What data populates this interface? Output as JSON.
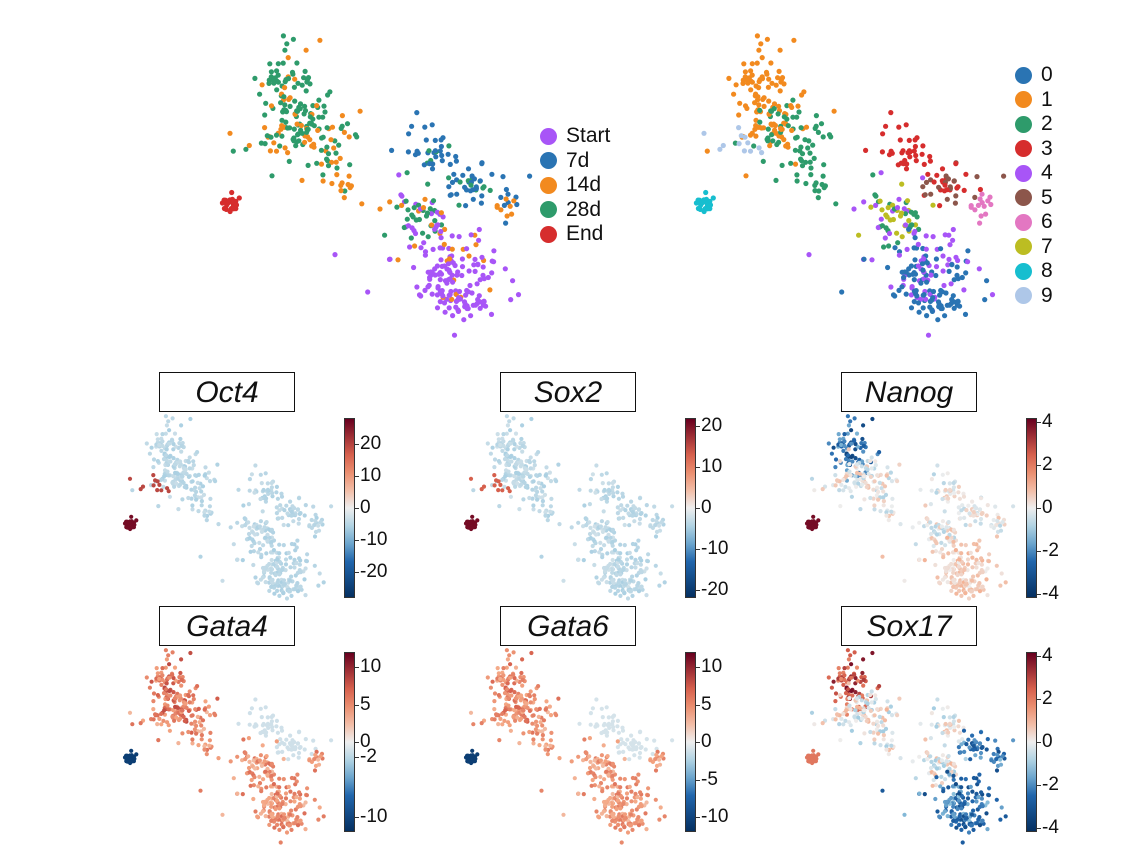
{
  "chart_data": [
    {
      "type": "scatter",
      "title": "",
      "xlabel": "",
      "ylabel": "",
      "legend_position": "right",
      "legend": [
        {
          "label": "Start",
          "color": "#a855f7"
        },
        {
          "label": "7d",
          "color": "#2a74b3"
        },
        {
          "label": "14d",
          "color": "#f28a1f"
        },
        {
          "label": "28d",
          "color": "#2e9b6b"
        },
        {
          "label": "End",
          "color": "#d62d2d"
        }
      ]
    },
    {
      "type": "scatter",
      "title": "",
      "xlabel": "",
      "ylabel": "",
      "legend_position": "right",
      "legend": [
        {
          "label": "0",
          "color": "#2a74b3"
        },
        {
          "label": "1",
          "color": "#f28a1f"
        },
        {
          "label": "2",
          "color": "#2e9b6b"
        },
        {
          "label": "3",
          "color": "#d62d2d"
        },
        {
          "label": "4",
          "color": "#a855f7"
        },
        {
          "label": "5",
          "color": "#8c564b"
        },
        {
          "label": "6",
          "color": "#e377c2"
        },
        {
          "label": "7",
          "color": "#bcbd22"
        },
        {
          "label": "8",
          "color": "#17becf"
        },
        {
          "label": "9",
          "color": "#aec7e8"
        }
      ]
    },
    {
      "type": "scatter",
      "title": "Oct4",
      "colorscale": "RdBu_r",
      "range": [
        -28,
        28
      ],
      "ticks": [
        "20",
        "10",
        "0",
        "-10",
        "-20"
      ],
      "tick_values": [
        20,
        10,
        0,
        -10,
        -20
      ]
    },
    {
      "type": "scatter",
      "title": "Sox2",
      "colorscale": "RdBu_r",
      "range": [
        -22,
        22
      ],
      "ticks": [
        "20",
        "10",
        "0",
        "-10",
        "-20"
      ],
      "tick_values": [
        20,
        10,
        0,
        -10,
        -20
      ]
    },
    {
      "type": "scatter",
      "title": "Nanog",
      "colorscale": "RdBu_r",
      "range": [
        -4.2,
        4.2
      ],
      "ticks": [
        "4",
        "2",
        "0",
        "-2",
        "-4"
      ],
      "tick_values": [
        4,
        2,
        0,
        -2,
        -4
      ]
    },
    {
      "type": "scatter",
      "title": "Gata4",
      "colorscale": "RdBu_r",
      "range": [
        -12,
        12
      ],
      "ticks": [
        "10",
        "5",
        "0",
        "-2",
        "-10"
      ],
      "tick_values": [
        10,
        5,
        0,
        -2,
        -10
      ]
    },
    {
      "type": "scatter",
      "title": "Gata6",
      "colorscale": "RdBu_r",
      "range": [
        -12,
        12
      ],
      "ticks": [
        "10",
        "5",
        "0",
        "-5",
        "-10"
      ],
      "tick_values": [
        10,
        5,
        0,
        -5,
        -10
      ]
    },
    {
      "type": "scatter",
      "title": "Sox17",
      "colorscale": "RdBu_r",
      "range": [
        -4.2,
        4.2
      ],
      "ticks": [
        "4",
        "2",
        "0",
        "-2",
        "-4"
      ],
      "tick_values": [
        4,
        2,
        0,
        -2,
        -4
      ]
    }
  ]
}
